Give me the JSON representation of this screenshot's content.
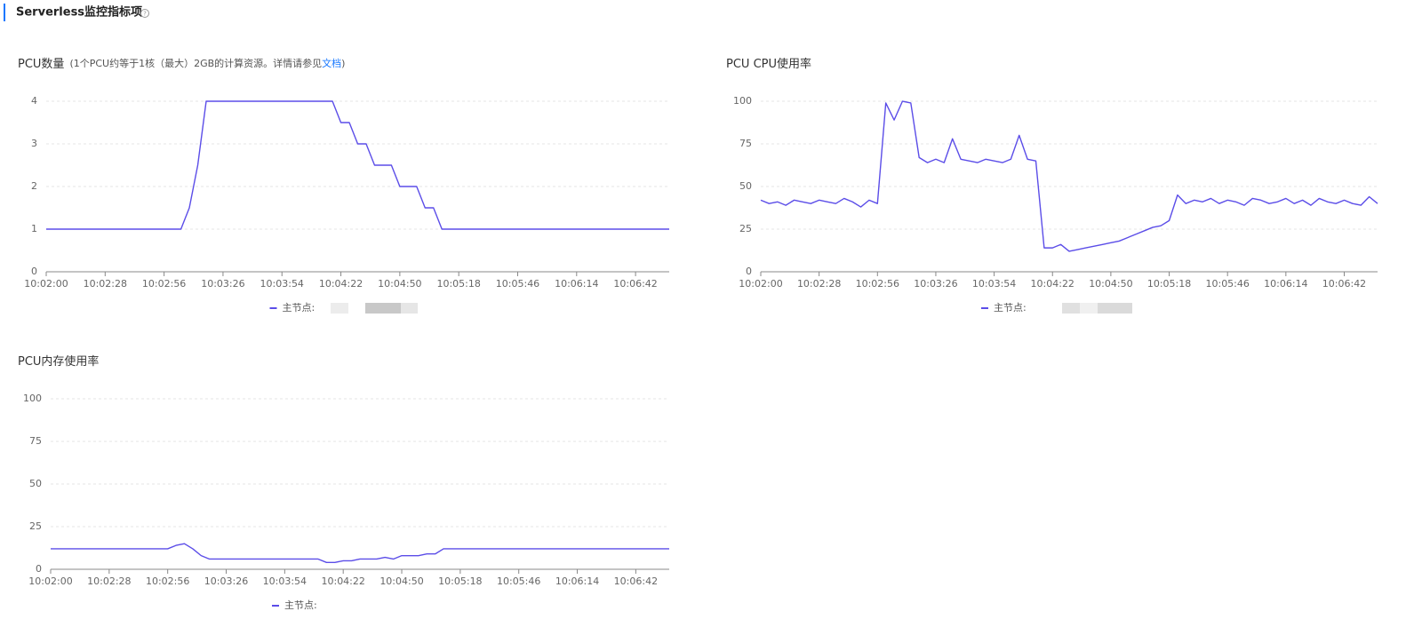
{
  "header": {
    "title": "Serverless监控指标项"
  },
  "chart_data": [
    {
      "type": "line",
      "title": "PCU数量",
      "note": "(1个PCU约等于1核（最大）2GB的计算资源。详情请参见",
      "link": "文档",
      "note_end": ")",
      "categories": [
        "10:02:00",
        null,
        null,
        null,
        null,
        null,
        null,
        "10:02:28",
        null,
        null,
        null,
        null,
        null,
        null,
        "10:02:56",
        null,
        null,
        null,
        null,
        null,
        null,
        "10:03:26",
        null,
        null,
        null,
        null,
        null,
        null,
        "10:03:54",
        null,
        null,
        null,
        null,
        null,
        null,
        "10:04:22",
        null,
        null,
        null,
        null,
        null,
        null,
        "10:04:50",
        null,
        null,
        null,
        null,
        null,
        null,
        "10:05:18",
        null,
        null,
        null,
        null,
        null,
        null,
        "10:05:46",
        null,
        null,
        null,
        null,
        null,
        null,
        "10:06:14",
        null,
        null,
        null,
        null,
        null,
        null,
        "10:06:42",
        null,
        null,
        null,
        null
      ],
      "series": [
        {
          "name": "主节点:",
          "color": "#5b4de8",
          "values": [
            1,
            1,
            1,
            1,
            1,
            1,
            1,
            1,
            1,
            1,
            1,
            1,
            1,
            1,
            1,
            1,
            1,
            1.5,
            2.5,
            4,
            4,
            4,
            4,
            4,
            4,
            4,
            4,
            4,
            4,
            4,
            4,
            4,
            4,
            4,
            4,
            3.5,
            3.5,
            3,
            3,
            2.5,
            2.5,
            2.5,
            2,
            2,
            2,
            1.5,
            1.5,
            1,
            1,
            1,
            1,
            1,
            1,
            1,
            1,
            1,
            1,
            1,
            1,
            1,
            1,
            1,
            1,
            1,
            1,
            1,
            1,
            1,
            1,
            1,
            1,
            1,
            1,
            1,
            1
          ]
        }
      ],
      "ylim": [
        0,
        4
      ],
      "yticks": [
        0,
        1,
        2,
        3,
        4
      ],
      "grid": true
    },
    {
      "type": "line",
      "title": "PCU CPU使用率",
      "categories": [
        "10:02:00",
        null,
        null,
        null,
        null,
        null,
        null,
        "10:02:28",
        null,
        null,
        null,
        null,
        null,
        null,
        "10:02:56",
        null,
        null,
        null,
        null,
        null,
        null,
        "10:03:26",
        null,
        null,
        null,
        null,
        null,
        null,
        "10:03:54",
        null,
        null,
        null,
        null,
        null,
        null,
        "10:04:22",
        null,
        null,
        null,
        null,
        null,
        null,
        "10:04:50",
        null,
        null,
        null,
        null,
        null,
        null,
        "10:05:18",
        null,
        null,
        null,
        null,
        null,
        null,
        "10:05:46",
        null,
        null,
        null,
        null,
        null,
        null,
        "10:06:14",
        null,
        null,
        null,
        null,
        null,
        null,
        "10:06:42",
        null,
        null,
        null,
        null
      ],
      "series": [
        {
          "name": "主节点:",
          "color": "#5b4de8",
          "values": [
            42,
            40,
            41,
            39,
            42,
            41,
            40,
            42,
            41,
            40,
            43,
            41,
            38,
            42,
            40,
            99,
            89,
            100,
            99,
            67,
            64,
            66,
            64,
            78,
            66,
            65,
            64,
            66,
            65,
            64,
            66,
            80,
            66,
            65,
            14,
            14,
            16,
            12,
            13,
            14,
            15,
            16,
            17,
            18,
            20,
            22,
            24,
            26,
            27,
            30,
            45,
            40,
            42,
            41,
            43,
            40,
            42,
            41,
            39,
            43,
            42,
            40,
            41,
            43,
            40,
            42,
            39,
            43,
            41,
            40,
            42,
            40,
            39,
            44,
            40
          ]
        }
      ],
      "ylim": [
        0,
        100
      ],
      "yticks": [
        0,
        25,
        50,
        75,
        100
      ],
      "grid": true
    },
    {
      "type": "line",
      "title": "PCU内存使用率",
      "categories": [
        "10:02:00",
        null,
        null,
        null,
        null,
        null,
        null,
        "10:02:28",
        null,
        null,
        null,
        null,
        null,
        null,
        "10:02:56",
        null,
        null,
        null,
        null,
        null,
        null,
        "10:03:26",
        null,
        null,
        null,
        null,
        null,
        null,
        "10:03:54",
        null,
        null,
        null,
        null,
        null,
        null,
        "10:04:22",
        null,
        null,
        null,
        null,
        null,
        null,
        "10:04:50",
        null,
        null,
        null,
        null,
        null,
        null,
        "10:05:18",
        null,
        null,
        null,
        null,
        null,
        null,
        "10:05:46",
        null,
        null,
        null,
        null,
        null,
        null,
        "10:06:14",
        null,
        null,
        null,
        null,
        null,
        null,
        "10:06:42",
        null,
        null,
        null,
        null
      ],
      "series": [
        {
          "name": "主节点:",
          "color": "#5b4de8",
          "values": [
            12,
            12,
            12,
            12,
            12,
            12,
            12,
            12,
            12,
            12,
            12,
            12,
            12,
            12,
            12,
            14,
            15,
            12,
            8,
            6,
            6,
            6,
            6,
            6,
            6,
            6,
            6,
            6,
            6,
            6,
            6,
            6,
            6,
            4,
            4,
            5,
            5,
            6,
            6,
            6,
            7,
            6,
            8,
            8,
            8,
            9,
            9,
            12,
            12,
            12,
            12,
            12,
            12,
            12,
            12,
            12,
            12,
            12,
            12,
            12,
            12,
            12,
            12,
            12,
            12,
            12,
            12,
            12,
            12,
            12,
            12,
            12,
            12,
            12,
            12
          ]
        }
      ],
      "ylim": [
        0,
        100
      ],
      "yticks": [
        0,
        25,
        50,
        75,
        100
      ],
      "grid": true
    }
  ]
}
